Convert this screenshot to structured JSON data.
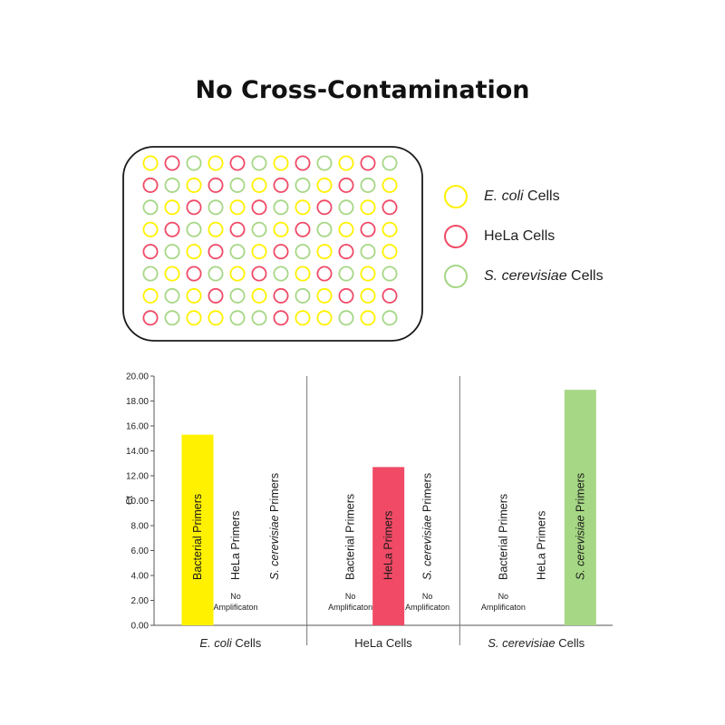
{
  "title": "No Cross-Contamination",
  "colors": {
    "ecoli": "#fff100",
    "hela": "#f04a66",
    "yeast": "#a6d785"
  },
  "legend": [
    {
      "key": "ecoli",
      "italic": "E. coli",
      "rest": " Cells"
    },
    {
      "key": "hela",
      "italic": "",
      "rest": "HeLa Cells"
    },
    {
      "key": "yeast",
      "italic": "S. cerevisiae",
      "rest": " Cells"
    }
  ],
  "plate": {
    "rows": [
      [
        "ecoli",
        "hela",
        "yeast",
        "ecoli",
        "hela",
        "yeast",
        "ecoli",
        "hela",
        "yeast",
        "ecoli",
        "hela",
        "yeast"
      ],
      [
        "hela",
        "yeast",
        "ecoli",
        "hela",
        "yeast",
        "ecoli",
        "hela",
        "yeast",
        "ecoli",
        "hela",
        "yeast",
        "ecoli"
      ],
      [
        "yeast",
        "ecoli",
        "hela",
        "yeast",
        "ecoli",
        "hela",
        "yeast",
        "ecoli",
        "hela",
        "yeast",
        "ecoli",
        "hela"
      ],
      [
        "ecoli",
        "hela",
        "yeast",
        "ecoli",
        "hela",
        "yeast",
        "ecoli",
        "hela",
        "yeast",
        "ecoli",
        "hela",
        "ecoli"
      ],
      [
        "hela",
        "yeast",
        "ecoli",
        "hela",
        "yeast",
        "ecoli",
        "hela",
        "yeast",
        "ecoli",
        "hela",
        "yeast",
        "ecoli"
      ],
      [
        "yeast",
        "ecoli",
        "hela",
        "yeast",
        "ecoli",
        "hela",
        "yeast",
        "ecoli",
        "hela",
        "yeast",
        "ecoli",
        "yeast"
      ],
      [
        "ecoli",
        "yeast",
        "ecoli",
        "hela",
        "yeast",
        "ecoli",
        "hela",
        "yeast",
        "ecoli",
        "hela",
        "ecoli",
        "hela"
      ],
      [
        "hela",
        "yeast",
        "ecoli",
        "ecoli",
        "yeast",
        "yeast",
        "hela",
        "ecoli",
        "ecoli",
        "yeast",
        "ecoli",
        "yeast"
      ]
    ]
  },
  "chart_data": {
    "type": "bar",
    "ylabel": "Ct",
    "ylim": [
      0,
      20
    ],
    "yticks": [
      "0.00",
      "2.00",
      "4.00",
      "6.00",
      "8.00",
      "10.00",
      "12.00",
      "14.00",
      "16.00",
      "18.00",
      "20.00"
    ],
    "groups": [
      {
        "label_italic": "E. coli",
        "label_rest": " Cells",
        "bars": [
          {
            "primer_italic": "",
            "primer_rest": "Bacterial Primers",
            "value": 15.3,
            "color_key": "ecoli",
            "note": ""
          },
          {
            "primer_italic": "",
            "primer_rest": "HeLa Primers",
            "value": null,
            "color_key": "",
            "note": "No Amplificaton"
          },
          {
            "primer_italic": "S. cerevisiae",
            "primer_rest": " Primers",
            "value": null,
            "color_key": "",
            "note": ""
          }
        ]
      },
      {
        "label_italic": "",
        "label_rest": "HeLa Cells",
        "bars": [
          {
            "primer_italic": "",
            "primer_rest": "Bacterial Primers",
            "value": null,
            "color_key": "",
            "note": "No Amplificaton"
          },
          {
            "primer_italic": "",
            "primer_rest": "HeLa Primers",
            "value": 12.7,
            "color_key": "hela",
            "note": ""
          },
          {
            "primer_italic": "S. cerevisiae",
            "primer_rest": " Primers",
            "value": null,
            "color_key": "",
            "note": "No Amplificaton"
          }
        ]
      },
      {
        "label_italic": "S. cerevisiae",
        "label_rest": " Cells",
        "bars": [
          {
            "primer_italic": "",
            "primer_rest": "Bacterial  Primers",
            "value": null,
            "color_key": "",
            "note": "No Amplificaton"
          },
          {
            "primer_italic": "",
            "primer_rest": "HeLa Primers",
            "value": null,
            "color_key": "",
            "note": ""
          },
          {
            "primer_italic": "S. cerevisiae",
            "primer_rest": " Primers",
            "value": 18.9,
            "color_key": "yeast",
            "note": ""
          }
        ]
      }
    ]
  }
}
